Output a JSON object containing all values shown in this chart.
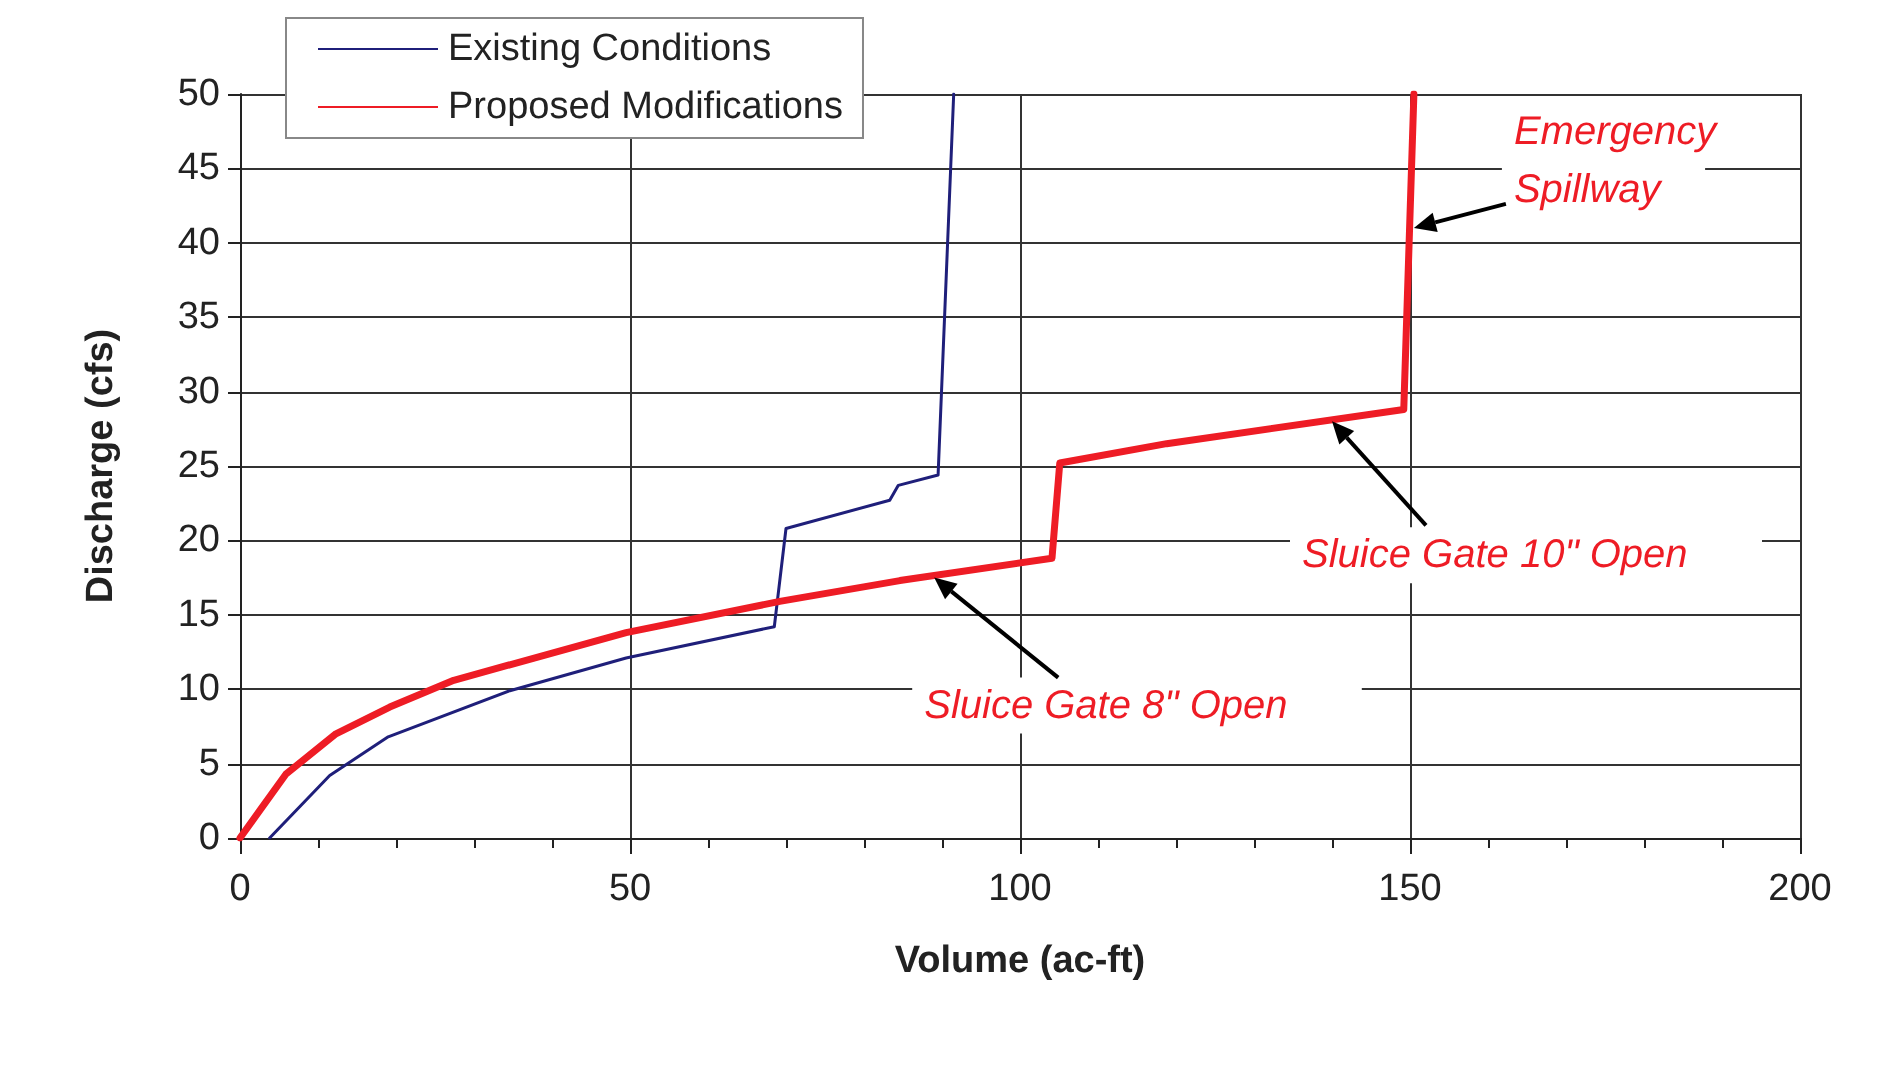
{
  "chart_data": {
    "type": "line",
    "xlabel": "Volume (ac-ft)",
    "ylabel": "Discharge (cfs)",
    "xlim": [
      0,
      200
    ],
    "xticks": [
      0,
      50,
      100,
      150,
      200
    ],
    "ylim": [
      0,
      50
    ],
    "yticks": [
      0,
      5,
      10,
      15,
      20,
      25,
      30,
      35,
      40,
      45,
      50
    ],
    "grid": true,
    "legend": "top left",
    "marker": "none",
    "line_style": "solid",
    "series": [
      {
        "name": "Existing Conditions",
        "color": "#1f1f7a",
        "x": [
          3.8,
          11.5,
          19,
          34.6,
          49.5,
          68.5,
          70,
          83.3,
          84.4,
          89.5,
          91.5
        ],
        "values": [
          0,
          4.2,
          6.8,
          9.9,
          12.1,
          14.2,
          20.8,
          22.7,
          23.7,
          24.4,
          50
        ]
      },
      {
        "name": "Proposed Modifications",
        "color": "#ee1c25",
        "x": [
          0,
          5.9,
          12.3,
          19.2,
          27.4,
          49.5,
          69.2,
          84.6,
          104.1,
          105.1,
          118.8,
          149.2,
          150.5
        ],
        "values": [
          0,
          4.3,
          7.0,
          8.8,
          10.6,
          13.8,
          15.9,
          17.3,
          18.8,
          25.2,
          26.5,
          28.8,
          50
        ]
      }
    ],
    "annotations": [
      {
        "text": "Emergency\nSpillway",
        "x": 150.5,
        "y": 41
      },
      {
        "text": "Sluice Gate 10\" Open",
        "x": 140,
        "y": 28
      },
      {
        "text": "Sluice Gate 8\" Open",
        "x": 89,
        "y": 17.5
      }
    ]
  }
}
